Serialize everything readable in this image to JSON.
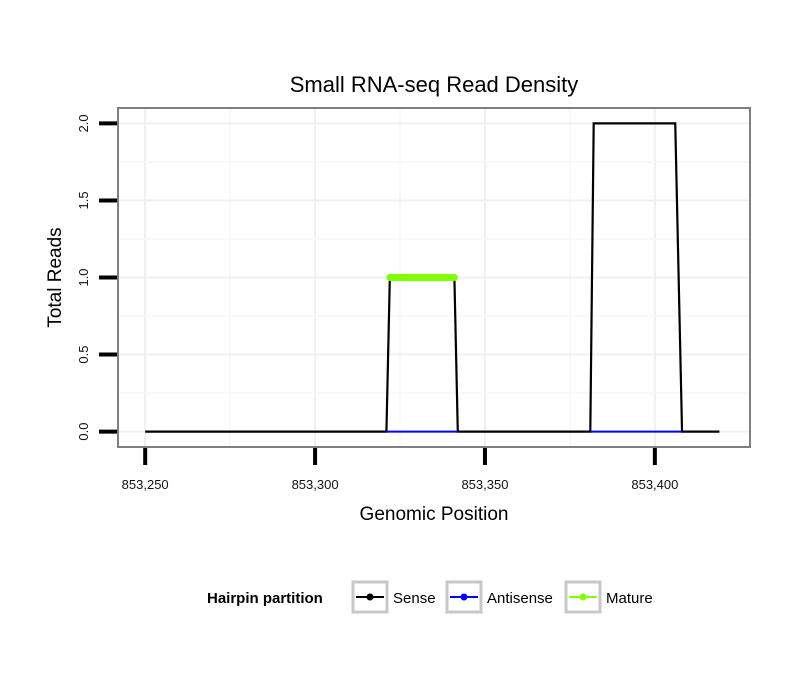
{
  "chart_data": {
    "type": "line",
    "title": "Small RNA-seq Read Density",
    "xlabel": "Genomic Position",
    "ylabel": "Total Reads",
    "xlim": [
      853242,
      853428
    ],
    "ylim": [
      -0.1,
      2.1
    ],
    "x_ticks": [
      853250,
      853300,
      853350,
      853400
    ],
    "x_tick_labels": [
      "853,250",
      "853,300",
      "853,350",
      "853,400"
    ],
    "y_ticks": [
      0,
      0.5,
      1,
      1.5,
      2
    ],
    "y_tick_labels": [
      "0.0",
      "0.5",
      "1.0",
      "1.5",
      "2.0"
    ],
    "grid": true,
    "legend_position": "bottom",
    "legend_title": "Hairpin partition",
    "series": [
      {
        "name": "Sense",
        "color": "#000000",
        "x": [
          853250,
          853321,
          853322,
          853341,
          853342,
          853381,
          853382,
          853406,
          853408,
          853419
        ],
        "y": [
          0,
          0,
          1,
          1,
          0,
          0,
          2,
          2,
          0,
          0
        ]
      },
      {
        "name": "Antisense",
        "color": "#0000ff",
        "x": [
          853321,
          853342
        ],
        "y": [
          0,
          0
        ],
        "x2": [
          853381,
          853408
        ],
        "y2": [
          0,
          0
        ]
      },
      {
        "name": "Mature",
        "color": "#7fff00",
        "x": [
          853322,
          853341
        ],
        "y": [
          1,
          1
        ]
      }
    ]
  }
}
